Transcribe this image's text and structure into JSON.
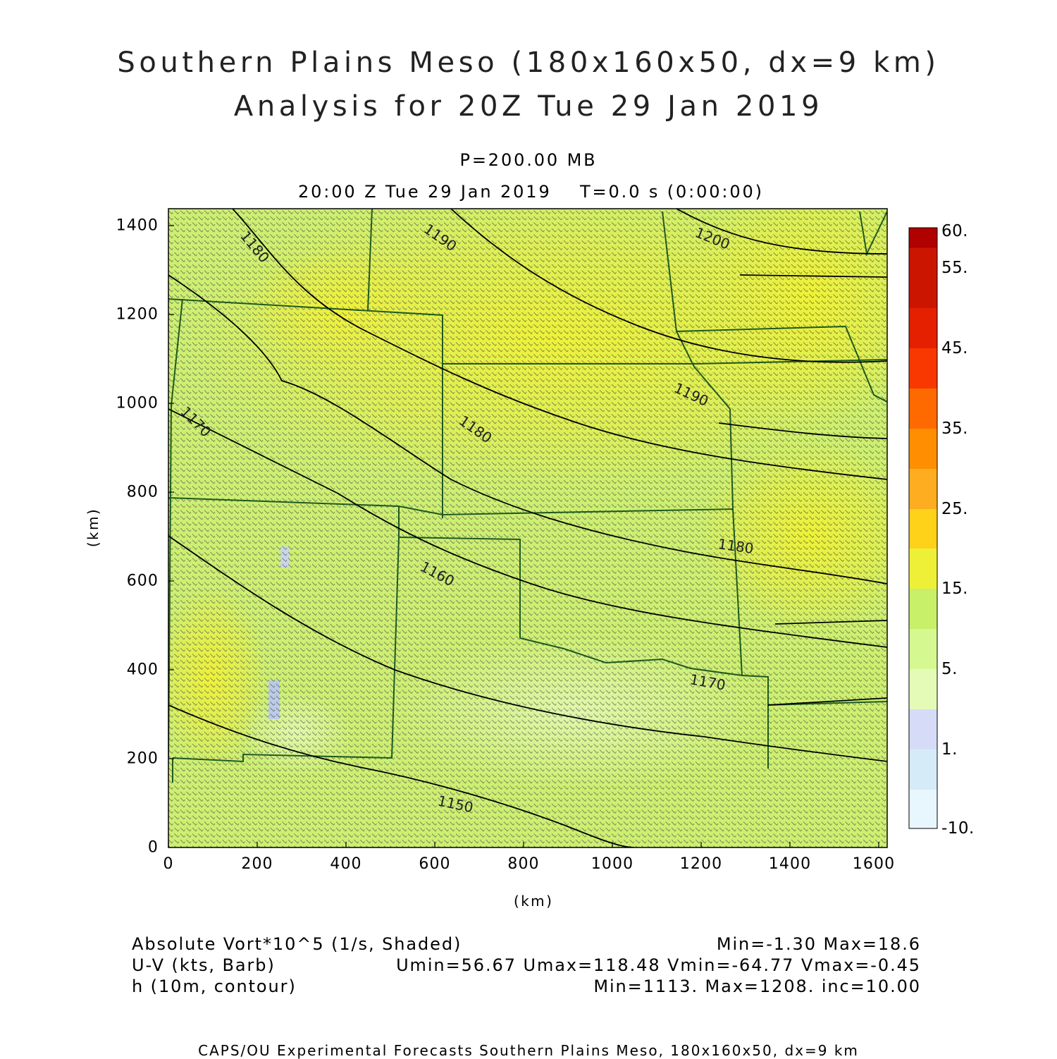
{
  "header": {
    "title_line1": "Southern Plains Meso (180x160x50, dx=9 km)",
    "title_line2": "Analysis for 20Z Tue 29 Jan 2019",
    "level": "P=200.00 MB",
    "valid_time": "20:00 Z Tue 29 Jan 2019",
    "forecast_time": "T=0.0 s (0:00:00)"
  },
  "axes": {
    "xlabel": "(km)",
    "ylabel": "(km)",
    "xticks": [
      "0",
      "200",
      "400",
      "600",
      "800",
      "1000",
      "1200",
      "1400",
      "1600"
    ],
    "yticks": [
      "0",
      "200",
      "400",
      "600",
      "800",
      "1000",
      "1200",
      "1400"
    ],
    "xlim": [
      0,
      1620
    ],
    "ylim": [
      0,
      1440
    ]
  },
  "colorbar": {
    "labels": [
      "60.",
      "55.",
      "45.",
      "35.",
      "25.",
      "15.",
      "5.",
      "1.",
      "-10."
    ],
    "colors": [
      "#b00000",
      "#cc1500",
      "#e42000",
      "#f83800",
      "#ff6a00",
      "#ff8f00",
      "#ffad20",
      "#ffd21a",
      "#eef038",
      "#c8f068",
      "#d6f890",
      "#e4fbb8",
      "#d6dcf7",
      "#d6ebf8",
      "#e8f6fd"
    ]
  },
  "contour_labels": {
    "northwest": "1180",
    "north": "1190",
    "northeast": "1200",
    "east": "1190",
    "center": "1180",
    "west": "1170",
    "southcenter": "1160",
    "southeast": "1180",
    "southeast2": "1170",
    "south": "1150"
  },
  "legend": {
    "left_line1": "Absolute Vort*10^5 (1/s, Shaded)",
    "left_line2": "U-V (kts, Barb)",
    "left_line3": "h (10m, contour)",
    "right_line1": "Min=-1.30 Max=18.6",
    "right_line2": "Umin=56.67 Umax=118.48 Vmin=-64.77 Vmax=-0.45",
    "right_line3": "Min=1113. Max=1208. inc=10.00"
  },
  "footer": "CAPS/OU Experimental Forecasts  Southern Plains Meso, 180x160x50, dx=9 km"
}
